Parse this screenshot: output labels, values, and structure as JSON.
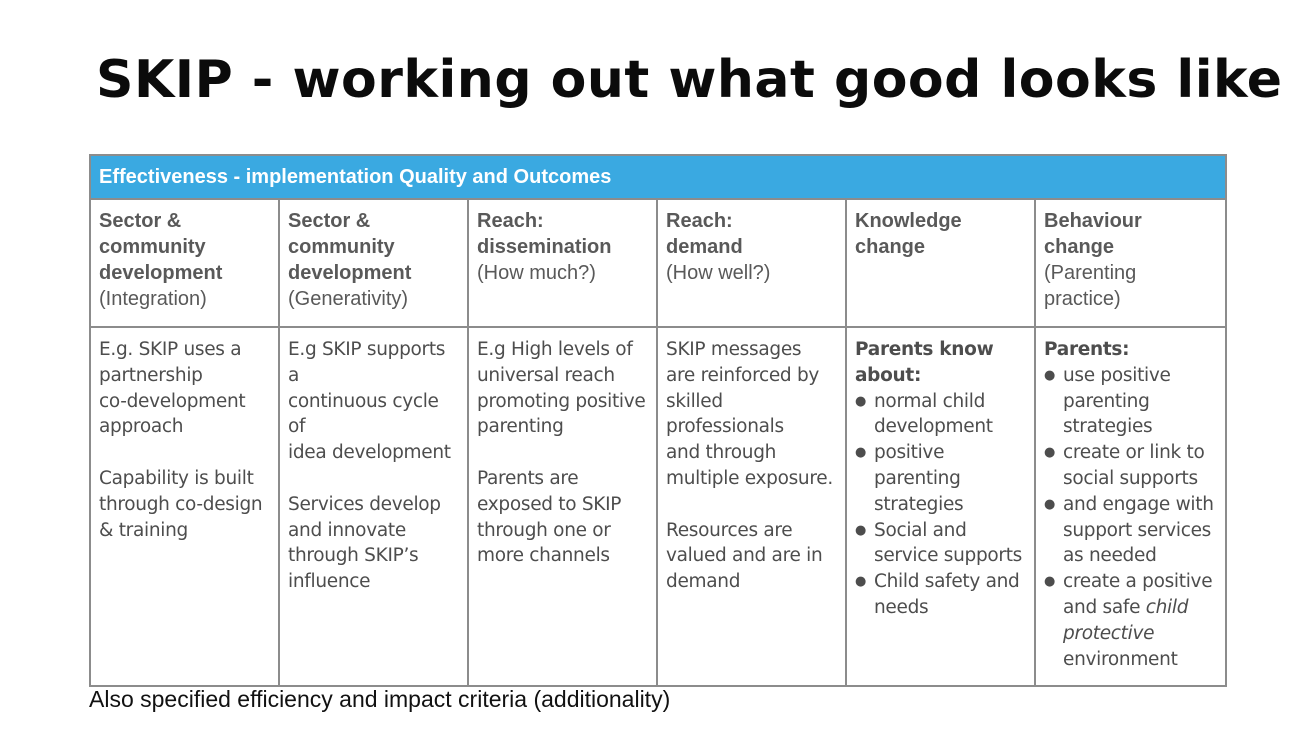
{
  "title": "SKIP - working out what good looks like",
  "table": {
    "banner": "Effectiveness - implementation Quality and Outcomes",
    "columns": [
      {
        "head_bold": [
          "Sector &",
          "community",
          "development"
        ],
        "head_sub": [
          "(Integration)"
        ],
        "body": {
          "paragraphs": [
            [
              "E.g. SKIP uses a",
              "partnership",
              "co-development",
              "approach"
            ],
            [
              "Capability is built",
              "through co-design",
              "& training"
            ]
          ]
        }
      },
      {
        "head_bold": [
          "Sector &",
          "community",
          "development"
        ],
        "head_sub": [
          "(Generativity)"
        ],
        "body": {
          "paragraphs": [
            [
              "E.g SKIP supports a",
              "continuous cycle of",
              "idea development"
            ],
            [
              "Services develop",
              "and innovate",
              "through SKIP’s",
              "influence"
            ]
          ]
        }
      },
      {
        "head_bold": [
          "Reach:",
          "dissemination"
        ],
        "head_sub": [
          "(How much?)"
        ],
        "body": {
          "paragraphs": [
            [
              "E.g High levels of",
              "universal reach",
              "promoting positive",
              "parenting"
            ],
            [
              "Parents are",
              "exposed to SKIP",
              "through one or",
              "more channels"
            ]
          ]
        }
      },
      {
        "head_bold": [
          "Reach:",
          "demand"
        ],
        "head_sub": [
          "(How well?)"
        ],
        "body": {
          "paragraphs": [
            [
              "SKIP messages",
              "are reinforced by",
              "skilled",
              "professionals",
              "and through",
              "multiple exposure."
            ],
            [
              "Resources are",
              "valued and are in",
              "demand"
            ]
          ]
        }
      },
      {
        "head_bold": [
          "Knowledge",
          "change"
        ],
        "head_sub": [],
        "body": {
          "lead": [
            "Parents know",
            "about:"
          ],
          "bullets": [
            [
              "normal child",
              "development"
            ],
            [
              "positive",
              "parenting",
              "strategies"
            ],
            [
              "Social and",
              "service supports"
            ],
            [
              "Child safety and",
              "needs"
            ]
          ]
        }
      },
      {
        "head_bold": [
          "Behaviour",
          "change"
        ],
        "head_sub": [
          "(Parenting",
          "practice)"
        ],
        "body": {
          "lead": [
            "Parents:"
          ],
          "bullets": [
            [
              "use positive",
              "parenting",
              "strategies"
            ],
            [
              "create or link to",
              "social supports"
            ],
            [
              "and engage with",
              "support services",
              "as needed"
            ]
          ],
          "last_bullet": {
            "line1": "create a positive",
            "line2_plain": "and safe ",
            "line2_italic": "child",
            "line3_italic": "protective",
            "line4": "environment"
          }
        }
      }
    ]
  },
  "footnote": "Also specified efficiency and impact criteria (additionality)"
}
